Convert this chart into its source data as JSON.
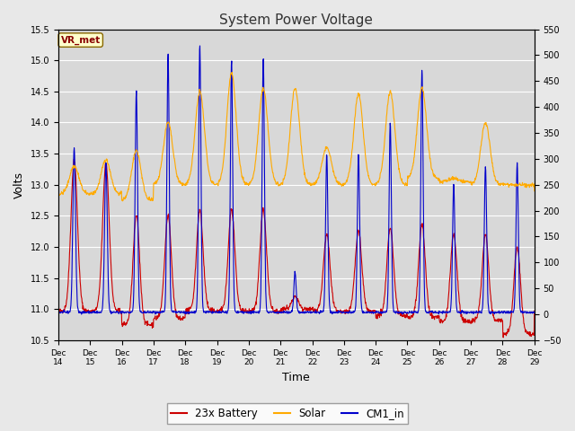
{
  "title": "System Power Voltage",
  "xlabel": "Time",
  "ylabel": "Volts",
  "ylim_left": [
    10.5,
    15.5
  ],
  "ylim_right": [
    -50,
    550
  ],
  "yticks_left": [
    10.5,
    11.0,
    11.5,
    12.0,
    12.5,
    13.0,
    13.5,
    14.0,
    14.5,
    15.0,
    15.5
  ],
  "yticks_right": [
    -50,
    0,
    50,
    100,
    150,
    200,
    250,
    300,
    350,
    400,
    450,
    500,
    550
  ],
  "fig_bg_color": "#e8e8e8",
  "plot_bg_color": "#d8d8d8",
  "grid_color": "#ffffff",
  "line_colors": {
    "battery": "#cc0000",
    "solar": "#ffaa00",
    "cm1": "#0000cc"
  },
  "legend_labels": [
    "23x Battery",
    "Solar",
    "CM1_in"
  ],
  "vr_met_label": "VR_met",
  "vr_met_bg": "#ffffcc",
  "vr_met_border": "#886600",
  "vr_met_text": "#880000",
  "x_tick_labels": [
    "Dec 14",
    "Dec 15",
    "Dec 16",
    "Dec 17",
    "Dec 18",
    "Dec 19",
    "Dec 20",
    "Dec 21",
    "Dec 22",
    "Dec 23",
    "Dec 24",
    "Dec 25",
    "Dec 26",
    "Dec 27",
    "Dec 28",
    "Dec 29"
  ],
  "day_params": [
    [
      0,
      10.97,
      13.4,
      13.6,
      12.85,
      13.3,
      12,
      2.5,
      1.0
    ],
    [
      1,
      10.97,
      13.35,
      13.35,
      12.85,
      13.4,
      12,
      2.5,
      1.0
    ],
    [
      2,
      10.75,
      12.5,
      14.5,
      12.75,
      13.55,
      11,
      2.5,
      0.9
    ],
    [
      3,
      10.85,
      12.5,
      15.1,
      13.0,
      14.0,
      11,
      2.5,
      0.85
    ],
    [
      4,
      10.97,
      12.6,
      15.25,
      13.0,
      14.5,
      11,
      2.5,
      0.85
    ],
    [
      5,
      10.97,
      12.6,
      15.0,
      13.0,
      14.8,
      11,
      2.5,
      0.85
    ],
    [
      6,
      10.97,
      12.6,
      15.05,
      13.0,
      14.55,
      11,
      2.5,
      0.85
    ],
    [
      7,
      11.0,
      11.2,
      11.6,
      13.0,
      14.55,
      11,
      2.5,
      0.85
    ],
    [
      8,
      10.97,
      12.2,
      13.5,
      13.0,
      13.6,
      11,
      2.5,
      0.85
    ],
    [
      9,
      10.97,
      12.25,
      13.5,
      13.0,
      14.45,
      11,
      2.5,
      0.85
    ],
    [
      10,
      10.9,
      12.3,
      14.0,
      13.0,
      14.5,
      11,
      2.5,
      0.85
    ],
    [
      11,
      10.87,
      12.35,
      14.85,
      13.1,
      14.55,
      11,
      2.5,
      0.85
    ],
    [
      12,
      10.8,
      12.2,
      13.0,
      13.05,
      13.1,
      11,
      2.5,
      0.85
    ],
    [
      13,
      10.82,
      12.2,
      13.3,
      13.0,
      14.0,
      11,
      2.5,
      0.85
    ],
    [
      14,
      10.6,
      12.0,
      13.35,
      13.0,
      13.0,
      11,
      2.5,
      0.85
    ]
  ]
}
